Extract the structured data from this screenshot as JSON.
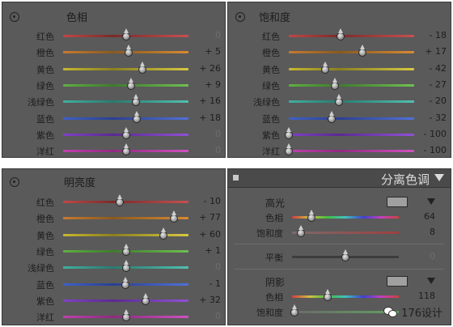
{
  "hue_panel": {
    "title": "色相",
    "rows": [
      {
        "label": "红色",
        "value": "0",
        "fraction": 0.5
      },
      {
        "label": "橙色",
        "value": "+ 5",
        "fraction": 0.525
      },
      {
        "label": "黄色",
        "value": "+ 26",
        "fraction": 0.63
      },
      {
        "label": "绿色",
        "value": "+ 9",
        "fraction": 0.545
      },
      {
        "label": "浅绿色",
        "value": "+ 16",
        "fraction": 0.58
      },
      {
        "label": "蓝色",
        "value": "+ 18",
        "fraction": 0.59
      },
      {
        "label": "紫色",
        "value": "0",
        "fraction": 0.5
      },
      {
        "label": "洋红",
        "value": "0",
        "fraction": 0.5
      }
    ]
  },
  "saturation_panel": {
    "title": "饱和度",
    "rows": [
      {
        "label": "红色",
        "value": "- 18",
        "fraction": 0.41
      },
      {
        "label": "橙色",
        "value": "+ 17",
        "fraction": 0.585
      },
      {
        "label": "黄色",
        "value": "- 42",
        "fraction": 0.29
      },
      {
        "label": "绿色",
        "value": "- 27",
        "fraction": 0.365
      },
      {
        "label": "浅绿色",
        "value": "- 20",
        "fraction": 0.4
      },
      {
        "label": "蓝色",
        "value": "- 32",
        "fraction": 0.34
      },
      {
        "label": "紫色",
        "value": "- 100",
        "fraction": 0.0
      },
      {
        "label": "洋红",
        "value": "- 100",
        "fraction": 0.0
      }
    ]
  },
  "luminance_panel": {
    "title": "明亮度",
    "rows": [
      {
        "label": "红色",
        "value": "- 10",
        "fraction": 0.45
      },
      {
        "label": "橙色",
        "value": "+ 77",
        "fraction": 0.885
      },
      {
        "label": "黄色",
        "value": "+ 60",
        "fraction": 0.8
      },
      {
        "label": "绿色",
        "value": "+ 1",
        "fraction": 0.505
      },
      {
        "label": "浅绿色",
        "value": "0",
        "fraction": 0.5
      },
      {
        "label": "蓝色",
        "value": "- 1",
        "fraction": 0.495
      },
      {
        "label": "紫色",
        "value": "+ 32",
        "fraction": 0.66
      },
      {
        "label": "洋红",
        "value": "0",
        "fraction": 0.5
      }
    ]
  },
  "split_toning": {
    "title": "分离色调",
    "highlights": {
      "title": "高光",
      "hue_label": "色相",
      "hue_value": "64",
      "hue_fraction": 0.18,
      "sat_label": "饱和度",
      "sat_value": "8",
      "sat_fraction": 0.08
    },
    "balance": {
      "label": "平衡",
      "value": "0",
      "fraction": 0.5
    },
    "shadows": {
      "title": "阴影",
      "hue_label": "色相",
      "hue_value": "118",
      "hue_fraction": 0.33,
      "sat_label": "饱和度",
      "sat_value": "",
      "sat_fraction": 0.02
    }
  },
  "watermark": {
    "text": "176设计"
  },
  "colors": {
    "panel_bg": "#5a5a5a",
    "tracks": {
      "红色": "linear-gradient(90deg,#c04848,#7a2a2a 40%,#c85050)",
      "橙色": "linear-gradient(90deg,#c87a30,#8a5a20 40%,#d88a30)",
      "黄色": "linear-gradient(90deg,#c8b830,#8a8020 40%,#d8c840)",
      "绿色": "linear-gradient(90deg,#60b040,#407a30 40%,#70c050)",
      "浅绿色": "linear-gradient(90deg,#40b0a0,#2a7a70 40%,#50c0b0)",
      "蓝色": "linear-gradient(90deg,#4060c8,#2a4090 40%,#5070d8)",
      "紫色": "linear-gradient(90deg,#8040c8,#5a2a90 40%,#9050d8)",
      "洋红": "linear-gradient(90deg,#c040b0,#902a80 40%,#d050c0)"
    }
  }
}
